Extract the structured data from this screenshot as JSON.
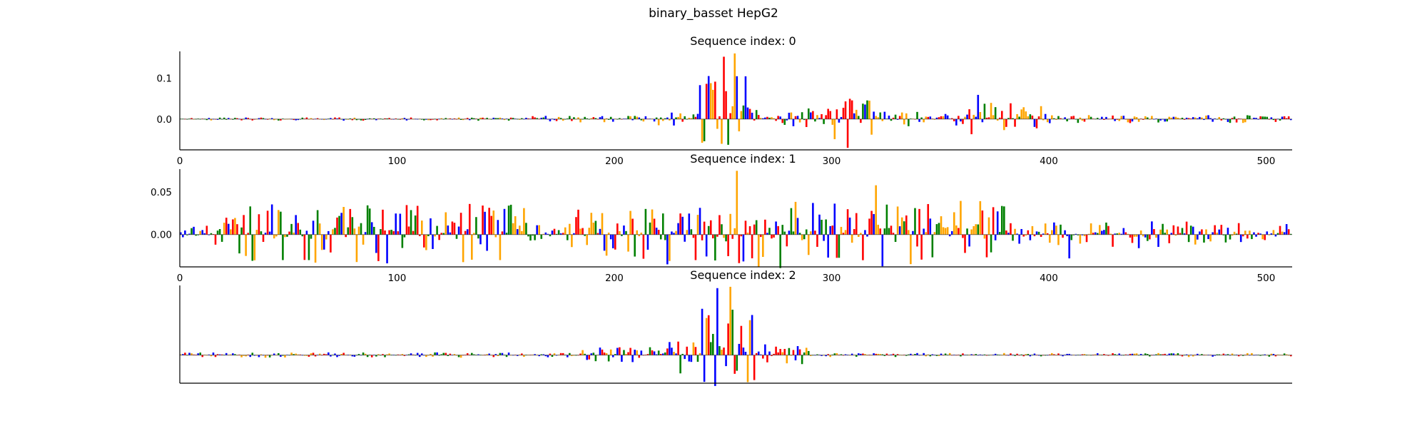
{
  "figure": {
    "suptitle": "binary_basset HepG2"
  },
  "colors": {
    "A": "#008000",
    "C": "#0000ff",
    "G": "#ffa500",
    "T": "#ff0000",
    "axis": "#000000"
  },
  "chart_data": [
    {
      "type": "sequence-logo",
      "title": "Sequence index: 0",
      "sequence_length": 512,
      "xlim": [
        0,
        512
      ],
      "xticks": [
        0,
        100,
        200,
        300,
        400,
        500
      ],
      "xtick_labels": [
        "0",
        "100",
        "200",
        "300",
        "400",
        "500"
      ],
      "ylim": [
        -0.075,
        0.165
      ],
      "yticks": [
        0.0,
        0.1
      ],
      "ytick_labels": [
        "0.0",
        "0.1"
      ],
      "regions": [
        {
          "start": 0,
          "end": 160,
          "level": 0.004
        },
        {
          "start": 160,
          "end": 220,
          "level": 0.008
        },
        {
          "start": 220,
          "end": 238,
          "level": 0.018
        },
        {
          "start": 238,
          "end": 262,
          "level": 0.105
        },
        {
          "start": 262,
          "end": 300,
          "level": 0.028
        },
        {
          "start": 300,
          "end": 322,
          "level": 0.05
        },
        {
          "start": 322,
          "end": 355,
          "level": 0.018
        },
        {
          "start": 355,
          "end": 400,
          "level": 0.04
        },
        {
          "start": 400,
          "end": 512,
          "level": 0.01
        }
      ],
      "peaks": [
        {
          "pos": 250,
          "value": 0.152,
          "base": "T"
        },
        {
          "pos": 255,
          "value": 0.16,
          "base": "G"
        },
        {
          "pos": 251,
          "value": 0.068,
          "base": "T"
        },
        {
          "pos": 307,
          "value": -0.07,
          "base": "T"
        },
        {
          "pos": 367,
          "value": 0.059,
          "base": "C"
        },
        {
          "pos": 318,
          "value": -0.038,
          "base": "G"
        }
      ]
    },
    {
      "type": "sequence-logo",
      "title": "Sequence index: 1",
      "sequence_length": 512,
      "xlim": [
        0,
        512
      ],
      "xticks": [
        0,
        100,
        200,
        300,
        400,
        500
      ],
      "xtick_labels": [
        "0",
        "100",
        "200",
        "300",
        "400",
        "500"
      ],
      "ylim": [
        -0.038,
        0.077
      ],
      "yticks": [
        0.0,
        0.05
      ],
      "ytick_labels": [
        "0.00",
        "0.05"
      ],
      "regions": [
        {
          "start": 0,
          "end": 20,
          "level": 0.012
        },
        {
          "start": 20,
          "end": 160,
          "level": 0.036
        },
        {
          "start": 160,
          "end": 180,
          "level": 0.015
        },
        {
          "start": 180,
          "end": 245,
          "level": 0.032
        },
        {
          "start": 245,
          "end": 380,
          "level": 0.04
        },
        {
          "start": 380,
          "end": 400,
          "level": 0.015
        },
        {
          "start": 400,
          "end": 470,
          "level": 0.016
        },
        {
          "start": 470,
          "end": 512,
          "level": 0.014
        }
      ],
      "peaks": [
        {
          "pos": 256,
          "value": 0.075,
          "base": "G"
        },
        {
          "pos": 224,
          "value": -0.035,
          "base": "C"
        },
        {
          "pos": 147,
          "value": -0.03,
          "base": "G"
        },
        {
          "pos": 133,
          "value": 0.036,
          "base": "T"
        },
        {
          "pos": 320,
          "value": 0.058,
          "base": "G"
        },
        {
          "pos": 409,
          "value": -0.028,
          "base": "C"
        }
      ]
    },
    {
      "type": "sequence-logo",
      "title": "Sequence index: 2",
      "sequence_length": 512,
      "xlim": [
        0,
        512
      ],
      "yticks": [],
      "regions": [
        {
          "start": 0,
          "end": 185,
          "level": 0.004
        },
        {
          "start": 185,
          "end": 225,
          "level": 0.012
        },
        {
          "start": 225,
          "end": 240,
          "level": 0.035
        },
        {
          "start": 240,
          "end": 265,
          "level": 0.07
        },
        {
          "start": 265,
          "end": 290,
          "level": 0.018
        },
        {
          "start": 290,
          "end": 512,
          "level": 0.003
        }
      ],
      "peaks": [
        {
          "pos": 247,
          "value": 0.1,
          "base": "C"
        },
        {
          "pos": 253,
          "value": 0.102,
          "base": "G"
        },
        {
          "pos": 241,
          "value": -0.04,
          "base": "C"
        },
        {
          "pos": 255,
          "value": -0.028,
          "base": "T"
        }
      ]
    }
  ]
}
